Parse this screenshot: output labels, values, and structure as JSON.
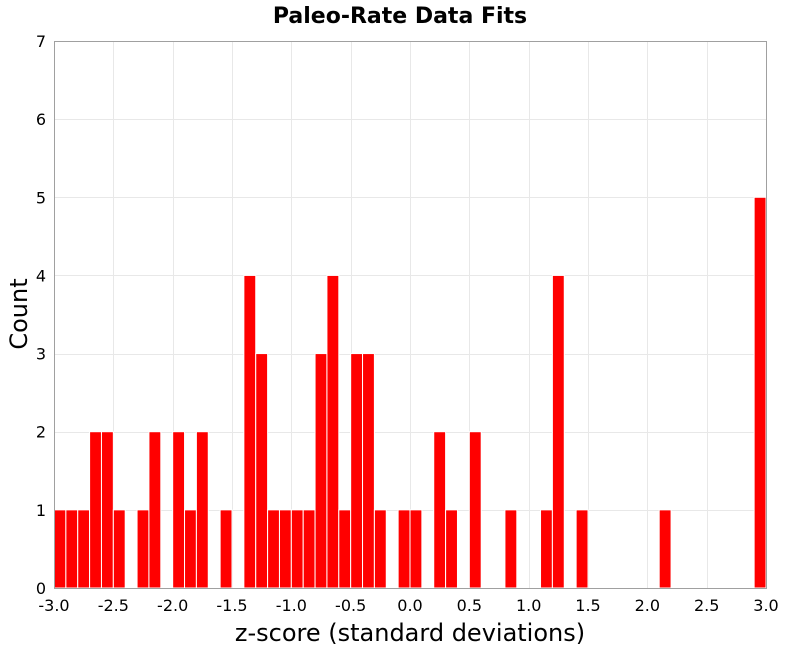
{
  "chart_data": {
    "type": "bar",
    "title": "Paleo-Rate Data Fits",
    "xlabel": "z-score (standard deviations)",
    "ylabel": "Count",
    "xlim": [
      -3.0,
      3.0
    ],
    "ylim": [
      0,
      7
    ],
    "bin_width": 0.1,
    "x_ticks": [
      "-3.0",
      "-2.5",
      "-2.0",
      "-1.5",
      "-1.0",
      "-0.5",
      "0.0",
      "0.5",
      "1.0",
      "1.5",
      "2.0",
      "2.5",
      "3.0"
    ],
    "y_ticks": [
      "0",
      "1",
      "2",
      "3",
      "4",
      "5",
      "6",
      "7"
    ],
    "grid": true,
    "bar_color": "#ff0000",
    "bins_left_edge": [
      -3.0,
      -2.9,
      -2.8,
      -2.7,
      -2.6,
      -2.5,
      -2.4,
      -2.3,
      -2.2,
      -2.1,
      -2.0,
      -1.9,
      -1.8,
      -1.7,
      -1.6,
      -1.5,
      -1.4,
      -1.3,
      -1.2,
      -1.1,
      -1.0,
      -0.9,
      -0.8,
      -0.7,
      -0.6,
      -0.5,
      -0.4,
      -0.3,
      -0.2,
      -0.1,
      0.0,
      0.1,
      0.2,
      0.3,
      0.4,
      0.5,
      0.6,
      0.7,
      0.8,
      0.9,
      1.0,
      1.1,
      1.2,
      1.3,
      1.4,
      1.5,
      1.6,
      1.7,
      1.8,
      1.9,
      2.0,
      2.1,
      2.2,
      2.3,
      2.4,
      2.5,
      2.6,
      2.7,
      2.8,
      2.9
    ],
    "counts": [
      1,
      1,
      1,
      2,
      2,
      1,
      0,
      1,
      2,
      0,
      2,
      1,
      2,
      0,
      1,
      0,
      4,
      3,
      1,
      1,
      1,
      1,
      3,
      4,
      1,
      3,
      3,
      1,
      0,
      1,
      1,
      0,
      2,
      1,
      0,
      2,
      0,
      0,
      1,
      0,
      0,
      1,
      4,
      0,
      1,
      0,
      0,
      0,
      0,
      0,
      0,
      1,
      0,
      0,
      0,
      0,
      0,
      0,
      0,
      5
    ]
  }
}
